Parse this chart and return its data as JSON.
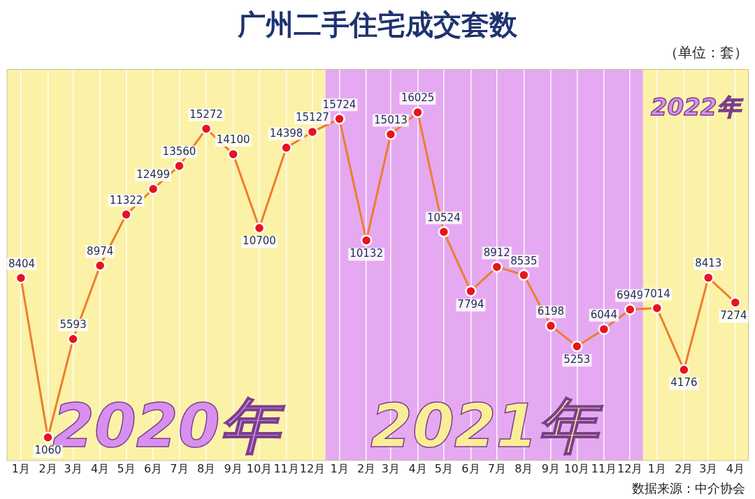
{
  "chart_data": {
    "type": "line",
    "title": "广州二手住宅成交套数",
    "subtitle": "（单位：套）",
    "x": [
      "2020-01",
      "2020-02",
      "2020-03",
      "2020-04",
      "2020-05",
      "2020-06",
      "2020-07",
      "2020-08",
      "2020-09",
      "2020-10",
      "2020-11",
      "2020-12",
      "2021-01",
      "2021-02",
      "2021-03",
      "2021-04",
      "2021-05",
      "2021-06",
      "2021-07",
      "2021-08",
      "2021-09",
      "2021-10",
      "2021-11",
      "2021-12",
      "2022-01",
      "2022-02",
      "2022-03",
      "2022-04"
    ],
    "xlim": [
      "2019-12-16",
      "2022-04-16"
    ],
    "xticks": [
      {
        "value": "2020-01",
        "label": "1月"
      },
      {
        "value": "2020-02",
        "label": "2月"
      },
      {
        "value": "2020-03",
        "label": "3月"
      },
      {
        "value": "2020-04",
        "label": "4月"
      },
      {
        "value": "2020-05",
        "label": "5月"
      },
      {
        "value": "2020-06",
        "label": "6月"
      },
      {
        "value": "2020-07",
        "label": "7月"
      },
      {
        "value": "2020-08",
        "label": "8月"
      },
      {
        "value": "2020-09",
        "label": "9月"
      },
      {
        "value": "2020-10",
        "label": "10月"
      },
      {
        "value": "2020-11",
        "label": "11月"
      },
      {
        "value": "2020-12",
        "label": "12月"
      },
      {
        "value": "2021-01",
        "label": "1月"
      },
      {
        "value": "2021-02",
        "label": "2月"
      },
      {
        "value": "2021-03",
        "label": "3月"
      },
      {
        "value": "2021-04",
        "label": "4月"
      },
      {
        "value": "2021-05",
        "label": "5月"
      },
      {
        "value": "2021-06",
        "label": "6月"
      },
      {
        "value": "2021-07",
        "label": "7月"
      },
      {
        "value": "2021-08",
        "label": "8月"
      },
      {
        "value": "2021-09",
        "label": "9月"
      },
      {
        "value": "2021-10",
        "label": "10月"
      },
      {
        "value": "2021-11",
        "label": "11月"
      },
      {
        "value": "2021-12",
        "label": "12月"
      },
      {
        "value": "2022-01",
        "label": "1月"
      },
      {
        "value": "2022-02",
        "label": "2月"
      },
      {
        "value": "2022-03",
        "label": "3月"
      },
      {
        "value": "2022-04",
        "label": "4月"
      }
    ],
    "series": [
      {
        "color": "#ee7d2e",
        "values": [
          8404,
          1060,
          5593,
          8974,
          11322,
          12499,
          13560,
          15272,
          14100,
          10700,
          14398,
          15127,
          15724,
          10132,
          15013,
          16025,
          10524,
          7794,
          8912,
          8535,
          6198,
          5253,
          6044,
          6949,
          7014,
          4176,
          8413,
          7274
        ]
      }
    ],
    "bands": [
      {
        "axis": "x",
        "from": "2019-12-16",
        "to": "2020-12-16",
        "label": "2020年",
        "color": "#fbf2a8"
      },
      {
        "axis": "x",
        "from": "2020-12-16",
        "to": "2021-12-16",
        "label": "2021年",
        "color": "#e5a9f2"
      },
      {
        "axis": "x",
        "from": "2021-12-16",
        "to": "2022-04-16",
        "label": "2022年",
        "color": "#fbf2a8"
      }
    ],
    "annotations": [
      "数据来源：中介协会"
    ],
    "data_labels": true,
    "marker": "circle",
    "grid": "x",
    "tick_labels": "x",
    "legend": false
  }
}
